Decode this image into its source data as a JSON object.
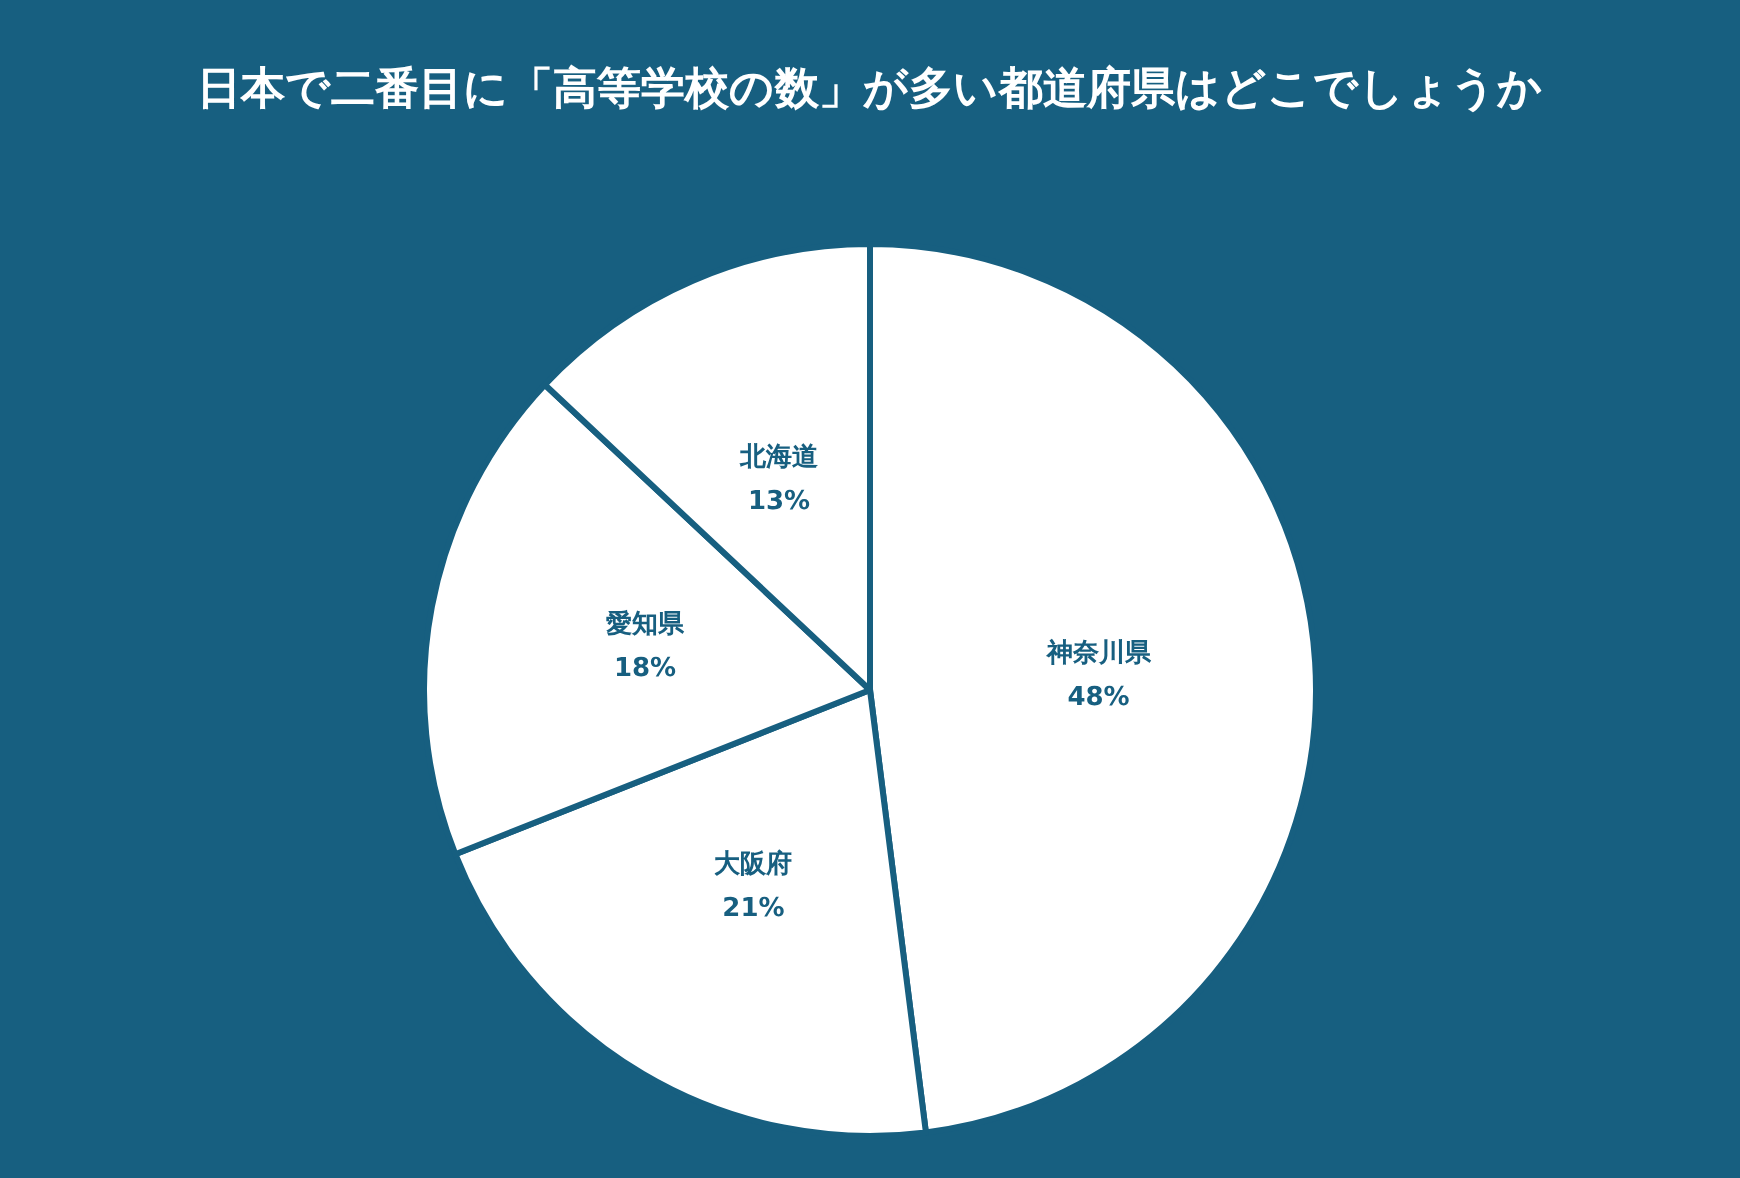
{
  "chart_data": {
    "type": "pie",
    "title": "日本で二番目に「高等学校の数」が多い都道府県はどこでしょうか",
    "categories": [
      "神奈川県",
      "大阪府",
      "愛知県",
      "北海道"
    ],
    "values": [
      48,
      21,
      18,
      13
    ],
    "value_labels": [
      "48%",
      "21%",
      "18%",
      "13%"
    ],
    "colors": [
      "#ffffff",
      "#ffffff",
      "#ffffff",
      "#ffffff"
    ],
    "legend": false
  }
}
